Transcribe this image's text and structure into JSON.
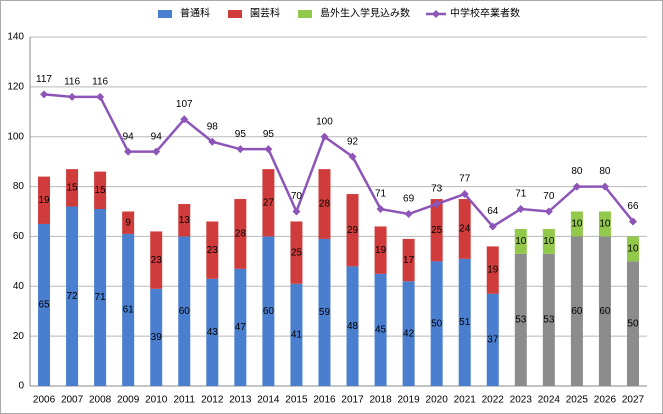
{
  "chart_data": {
    "type": "bar-line",
    "categories": [
      "2006",
      "2007",
      "2008",
      "2009",
      "2010",
      "2011",
      "2012",
      "2013",
      "2014",
      "2015",
      "2016",
      "2017",
      "2018",
      "2019",
      "2020",
      "2021",
      "2022",
      "2023",
      "2024",
      "2025",
      "2026",
      "2027"
    ],
    "series": [
      {
        "name": "普通科",
        "color": "#4a7fcf",
        "kind": "bar",
        "colors": [
          "#4a7fcf",
          "#4a7fcf",
          "#4a7fcf",
          "#4a7fcf",
          "#4a7fcf",
          "#4a7fcf",
          "#4a7fcf",
          "#4a7fcf",
          "#4a7fcf",
          "#4a7fcf",
          "#4a7fcf",
          "#4a7fcf",
          "#4a7fcf",
          "#4a7fcf",
          "#4a7fcf",
          "#4a7fcf",
          "#4a7fcf",
          "#8c8c8c",
          "#8c8c8c",
          "#8c8c8c",
          "#8c8c8c",
          "#8c8c8c"
        ],
        "values": [
          65,
          72,
          71,
          61,
          39,
          60,
          43,
          47,
          60,
          41,
          59,
          48,
          45,
          42,
          50,
          51,
          37,
          53,
          53,
          60,
          60,
          50
        ]
      },
      {
        "name": "園芸科",
        "color": "#d03c3c",
        "kind": "bar",
        "values": [
          19,
          15,
          15,
          9,
          23,
          13,
          23,
          28,
          27,
          25,
          28,
          29,
          19,
          17,
          25,
          24,
          19,
          null,
          null,
          null,
          null,
          null
        ]
      },
      {
        "name": "島外生入学見込み数",
        "color": "#92c94a",
        "kind": "bar",
        "values": [
          null,
          null,
          null,
          null,
          null,
          null,
          null,
          null,
          null,
          null,
          null,
          null,
          null,
          null,
          null,
          null,
          null,
          10,
          10,
          10,
          10,
          10
        ]
      },
      {
        "name": "中学校卒業者数",
        "color": "#8e55b8",
        "kind": "line",
        "values": [
          117,
          116,
          116,
          94,
          94,
          107,
          98,
          95,
          95,
          70,
          100,
          92,
          71,
          69,
          73,
          77,
          64,
          71,
          70,
          80,
          80,
          66
        ]
      }
    ],
    "ylim": [
      0,
      140
    ],
    "yticks": [
      0,
      20,
      40,
      60,
      80,
      100,
      120,
      140
    ],
    "grid": true,
    "legend": "top"
  }
}
